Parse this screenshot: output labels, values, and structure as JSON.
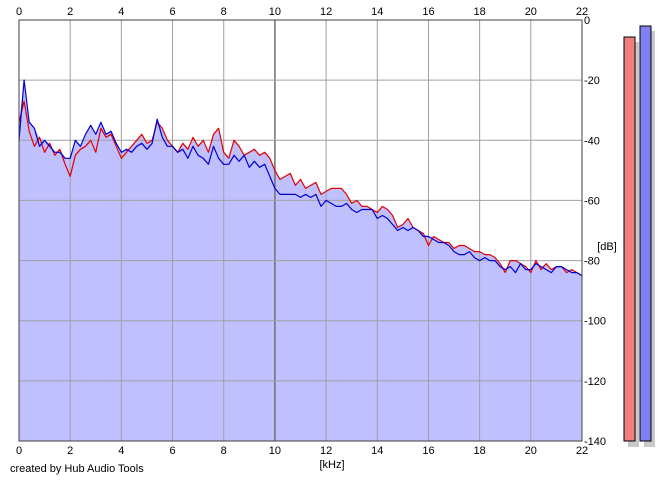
{
  "credit": "created by Hub Audio Tools",
  "colors": {
    "background": "#ffffff",
    "plot_background": "#ffffff",
    "fill": "#c0c0ff",
    "grid": "#a0a0a0",
    "grid_major": "#707070",
    "left_channel": "#e00000",
    "right_channel": "#0000d0",
    "meter_left": "#f08080",
    "meter_right": "#8080f0"
  },
  "chart_data": {
    "type": "line",
    "title": "",
    "xlabel": "[kHz]",
    "ylabel": "[dB]",
    "xlim": [
      0,
      22
    ],
    "ylim": [
      -140,
      0
    ],
    "x_ticks": [
      "0",
      "2",
      "4",
      "6",
      "8",
      "10",
      "12",
      "14",
      "16",
      "18",
      "20",
      "22"
    ],
    "x_tick_values": [
      0,
      2,
      4,
      6,
      8,
      10,
      12,
      14,
      16,
      18,
      20,
      22
    ],
    "y_ticks": [
      "0",
      "-20",
      "-40",
      "-60",
      "-80",
      "-100",
      "-120",
      "-140"
    ],
    "y_tick_values": [
      0,
      -20,
      -40,
      -60,
      -80,
      -100,
      -120,
      -140
    ],
    "grid": true,
    "x": [
      0.0,
      0.2,
      0.4,
      0.6,
      0.8,
      1.0,
      1.2,
      1.4,
      1.6,
      1.8,
      2.0,
      2.2,
      2.4,
      2.6,
      2.8,
      3.0,
      3.2,
      3.4,
      3.6,
      3.8,
      4.0,
      4.2,
      4.4,
      4.6,
      4.8,
      5.0,
      5.2,
      5.4,
      5.6,
      5.8,
      6.0,
      6.2,
      6.4,
      6.6,
      6.8,
      7.0,
      7.2,
      7.4,
      7.6,
      7.8,
      8.0,
      8.2,
      8.4,
      8.6,
      8.8,
      9.0,
      9.2,
      9.4,
      9.6,
      9.8,
      10.0,
      10.2,
      10.4,
      10.6,
      10.8,
      11.0,
      11.2,
      11.4,
      11.6,
      11.8,
      12.0,
      12.2,
      12.4,
      12.6,
      12.8,
      13.0,
      13.2,
      13.4,
      13.6,
      13.8,
      14.0,
      14.2,
      14.4,
      14.6,
      14.8,
      15.0,
      15.2,
      15.4,
      15.6,
      15.8,
      16.0,
      16.2,
      16.4,
      16.6,
      16.8,
      17.0,
      17.2,
      17.4,
      17.6,
      17.8,
      18.0,
      18.2,
      18.4,
      18.6,
      18.8,
      19.0,
      19.2,
      19.4,
      19.6,
      19.8,
      20.0,
      20.2,
      20.4,
      20.6,
      20.8,
      21.0,
      21.2,
      21.4,
      21.6,
      21.8,
      22.0
    ],
    "series": [
      {
        "values": [
          -34,
          -27,
          -37,
          -42,
          -39,
          -44,
          -41,
          -45,
          -43,
          -48,
          -52,
          -45,
          -43,
          -42,
          -40,
          -44,
          -36,
          -39,
          -38,
          -42,
          -46,
          -44,
          -42,
          -40,
          -38,
          -41,
          -40,
          -34,
          -36,
          -40,
          -42,
          -44,
          -41,
          -43,
          -39,
          -42,
          -40,
          -44,
          -38,
          -36,
          -44,
          -46,
          -40,
          -42,
          -45,
          -44,
          -43,
          -45,
          -44,
          -46,
          -50,
          -53,
          -52,
          -51,
          -55,
          -53,
          -56,
          -55,
          -54,
          -58,
          -57,
          -56,
          -56,
          -56,
          -58,
          -61,
          -60,
          -62,
          -62,
          -63,
          -64,
          -62,
          -63,
          -65,
          -69,
          -68,
          -66,
          -69,
          -70,
          -71,
          -75,
          -72,
          -73,
          -74,
          -74,
          -76,
          -75,
          -75,
          -76,
          -77,
          -77,
          -78,
          -78,
          -79,
          -81,
          -84,
          -80,
          -80,
          -81,
          -82,
          -84,
          -80,
          -83,
          -81,
          -83,
          -82,
          -82,
          -84,
          -83,
          -84,
          -85
        ]
      },
      {
        "values": [
          -40,
          -20,
          -34,
          -36,
          -42,
          -40,
          -42,
          -44,
          -44,
          -46,
          -46,
          -40,
          -42,
          -38,
          -35,
          -38,
          -34,
          -38,
          -37,
          -41,
          -44,
          -43,
          -44,
          -42,
          -41,
          -43,
          -41,
          -33,
          -39,
          -42,
          -42,
          -44,
          -43,
          -46,
          -42,
          -45,
          -46,
          -48,
          -42,
          -46,
          -48,
          -48,
          -45,
          -47,
          -45,
          -49,
          -47,
          -49,
          -48,
          -52,
          -56,
          -58,
          -58,
          -58,
          -58,
          -59,
          -58,
          -59,
          -58,
          -62,
          -60,
          -61,
          -62,
          -62,
          -61,
          -63,
          -64,
          -63,
          -63,
          -63,
          -66,
          -65,
          -66,
          -68,
          -70,
          -69,
          -70,
          -69,
          -70,
          -72,
          -72,
          -73,
          -74,
          -74,
          -75,
          -77,
          -78,
          -78,
          -77,
          -79,
          -80,
          -79,
          -80,
          -80,
          -82,
          -83,
          -82,
          -84,
          -81,
          -83,
          -83,
          -81,
          -82,
          -83,
          -84,
          -82,
          -82,
          -83,
          -84,
          -84,
          -85
        ]
      }
    ]
  }
}
